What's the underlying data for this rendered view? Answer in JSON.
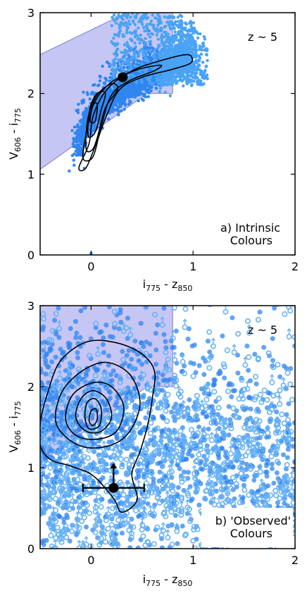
{
  "chart_data": [
    {
      "id": "a",
      "type": "scatter",
      "title": "",
      "xlabel": {
        "main": "i",
        "sub1": "775",
        "mid": " - z",
        "sub2": "850"
      },
      "ylabel": {
        "main": "V",
        "sub1": "606",
        "mid": " - i",
        "sub2": "775"
      },
      "xlim": [
        -0.5,
        2
      ],
      "ylim": [
        0,
        3
      ],
      "xticks": [
        0,
        1,
        2
      ],
      "yticks": [
        0,
        1,
        2,
        3
      ],
      "xtick_labels": [
        "0",
        "1",
        "2"
      ],
      "ytick_labels": [
        "0",
        "1",
        "2",
        "3"
      ],
      "grid": false,
      "redshift_label": "z ~ 5",
      "panel_label_lines": [
        "a) Intrinsic",
        "Colours"
      ],
      "selection_region_vertices": [
        [
          -0.5,
          1.06
        ],
        [
          -0.5,
          2.48
        ],
        [
          0.35,
          3.0
        ],
        [
          0.8,
          3.0
        ],
        [
          0.8,
          2.0
        ],
        [
          0.55,
          2.0
        ]
      ],
      "selection_region_color": "#b3b3f2",
      "point_color": "#2f86f0",
      "point_color_light": "#4aa3f5",
      "cloud_center_lines": [
        [
          -0.15,
          1.12
        ],
        [
          0.0,
          1.75
        ],
        [
          0.3,
          2.2
        ],
        [
          0.6,
          2.38
        ],
        [
          1.0,
          2.45
        ]
      ],
      "contours": [
        [
          [
            -0.12,
            1.08
          ],
          [
            -0.02,
            1.38
          ],
          [
            0.02,
            1.72
          ],
          [
            0.15,
            2.04
          ],
          [
            0.4,
            2.28
          ],
          [
            0.72,
            2.42
          ],
          [
            0.95,
            2.48
          ],
          [
            0.98,
            2.38
          ],
          [
            0.8,
            2.3
          ],
          [
            0.5,
            2.2
          ],
          [
            0.28,
            2.05
          ],
          [
            0.15,
            1.72
          ],
          [
            0.05,
            1.38
          ],
          [
            -0.05,
            1.08
          ]
        ],
        [
          [
            -0.08,
            1.2
          ],
          [
            -0.04,
            1.55
          ],
          [
            0.03,
            1.88
          ],
          [
            0.18,
            2.12
          ],
          [
            0.42,
            2.28
          ],
          [
            0.68,
            2.35
          ],
          [
            0.62,
            2.28
          ],
          [
            0.38,
            2.16
          ],
          [
            0.2,
            1.98
          ],
          [
            0.1,
            1.6
          ],
          [
            0.02,
            1.22
          ]
        ],
        [
          [
            -0.05,
            1.32
          ],
          [
            -0.03,
            1.7
          ],
          [
            0.06,
            1.98
          ],
          [
            0.2,
            2.12
          ],
          [
            0.26,
            2.05
          ],
          [
            0.14,
            1.82
          ],
          [
            0.06,
            1.45
          ],
          [
            0.01,
            1.3
          ]
        ],
        [
          [
            -0.03,
            1.48
          ],
          [
            -0.01,
            1.82
          ],
          [
            0.06,
            2.0
          ],
          [
            0.14,
            2.0
          ],
          [
            0.1,
            1.8
          ],
          [
            0.04,
            1.52
          ]
        ],
        [
          [
            -0.01,
            1.66
          ],
          [
            0.02,
            1.86
          ],
          [
            0.06,
            1.86
          ],
          [
            0.04,
            1.66
          ]
        ]
      ],
      "marker": {
        "x": 0.31,
        "y": 2.2
      }
    },
    {
      "id": "b",
      "type": "scatter",
      "title": "",
      "xlabel": {
        "main": "i",
        "sub1": "775",
        "mid": " - z",
        "sub2": "850"
      },
      "ylabel": {
        "main": "V",
        "sub1": "606",
        "mid": " - i",
        "sub2": "775"
      },
      "xlim": [
        -0.5,
        2
      ],
      "ylim": [
        0,
        3
      ],
      "xticks": [
        0,
        1,
        2
      ],
      "yticks": [
        0,
        1,
        2,
        3
      ],
      "xtick_labels": [
        "0",
        "1",
        "2"
      ],
      "ytick_labels": [
        "0",
        "1",
        "2",
        "3"
      ],
      "grid": false,
      "redshift_label": "z ~ 5",
      "panel_label_lines": [
        "b) 'Observed'",
        "Colours"
      ],
      "selection_region_vertices": [
        [
          -0.5,
          1.06
        ],
        [
          -0.5,
          3.0
        ],
        [
          0.8,
          3.0
        ],
        [
          0.8,
          2.0
        ],
        [
          0.55,
          2.0
        ]
      ],
      "selection_region_color": "#b3b3f2",
      "point_color": "#2f86f0",
      "point_color_light": "#69b3f5",
      "contours": [
        [
          [
            -0.5,
            1.55
          ],
          [
            -0.42,
            1.95
          ],
          [
            -0.3,
            2.32
          ],
          [
            -0.05,
            2.55
          ],
          [
            0.22,
            2.55
          ],
          [
            0.48,
            2.42
          ],
          [
            0.62,
            2.2
          ],
          [
            0.6,
            1.85
          ],
          [
            0.55,
            1.5
          ],
          [
            0.48,
            1.2
          ],
          [
            0.4,
            0.92
          ],
          [
            0.45,
            0.6
          ],
          [
            0.3,
            0.45
          ],
          [
            0.22,
            0.62
          ],
          [
            0.02,
            0.9
          ],
          [
            -0.2,
            1.02
          ],
          [
            -0.4,
            1.1
          ],
          [
            -0.5,
            1.28
          ]
        ],
        [
          [
            -0.35,
            1.6
          ],
          [
            -0.28,
            1.95
          ],
          [
            -0.08,
            2.2
          ],
          [
            0.15,
            2.3
          ],
          [
            0.38,
            2.15
          ],
          [
            0.48,
            1.8
          ],
          [
            0.38,
            1.45
          ],
          [
            0.2,
            1.28
          ],
          [
            -0.05,
            1.25
          ],
          [
            -0.25,
            1.38
          ]
        ],
        [
          [
            -0.25,
            1.6
          ],
          [
            -0.18,
            1.9
          ],
          [
            0.02,
            2.05
          ],
          [
            0.2,
            2.0
          ],
          [
            0.32,
            1.75
          ],
          [
            0.25,
            1.45
          ],
          [
            0.05,
            1.35
          ],
          [
            -0.15,
            1.4
          ]
        ],
        [
          [
            -0.15,
            1.62
          ],
          [
            -0.1,
            1.85
          ],
          [
            0.02,
            1.95
          ],
          [
            0.15,
            1.85
          ],
          [
            0.2,
            1.62
          ],
          [
            0.1,
            1.45
          ],
          [
            -0.05,
            1.45
          ]
        ],
        [
          [
            -0.06,
            1.62
          ],
          [
            -0.04,
            1.8
          ],
          [
            0.04,
            1.85
          ],
          [
            0.1,
            1.72
          ],
          [
            0.08,
            1.52
          ],
          [
            -0.02,
            1.48
          ]
        ],
        [
          [
            -0.02,
            1.58
          ],
          [
            0.0,
            1.7
          ],
          [
            0.05,
            1.72
          ],
          [
            0.06,
            1.6
          ],
          [
            0.02,
            1.52
          ]
        ]
      ],
      "marker": {
        "x": 0.22,
        "y": 0.75,
        "x_err_low": 0.3,
        "x_err_high": 0.3,
        "upper_limit_to": 1.06
      }
    }
  ]
}
